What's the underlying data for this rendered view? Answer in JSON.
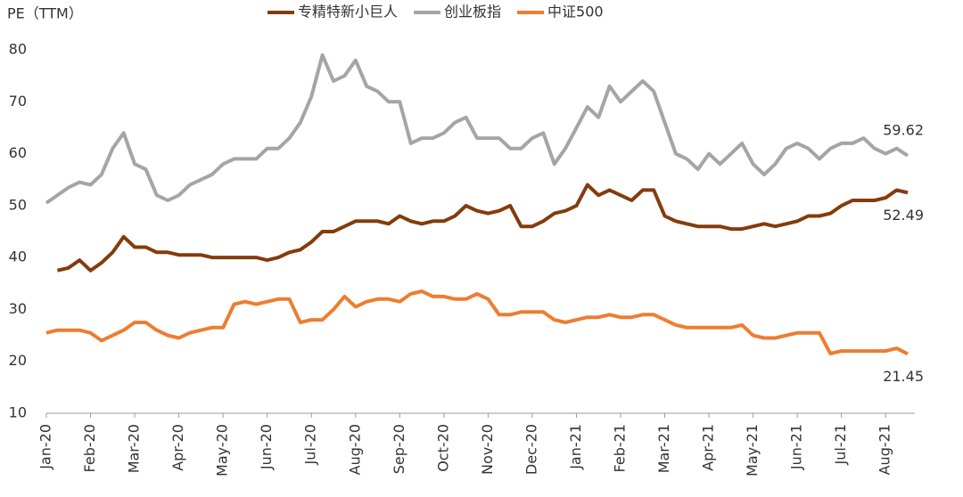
{
  "chart_data": {
    "type": "line",
    "y_label": "PE（TTM）",
    "categories": [
      "Jan-20",
      null,
      null,
      null,
      "Feb-20",
      null,
      null,
      null,
      "Mar-20",
      null,
      null,
      null,
      "Apr-20",
      null,
      null,
      null,
      "May-20",
      null,
      null,
      null,
      "Jun-20",
      null,
      null,
      null,
      "Jul-20",
      null,
      null,
      null,
      "Aug-20",
      null,
      null,
      null,
      "Sep-20",
      null,
      null,
      null,
      "Oct-20",
      null,
      null,
      null,
      "Nov-20",
      null,
      null,
      null,
      "Dec-20",
      null,
      null,
      null,
      "Jan-21",
      null,
      null,
      null,
      "Feb-21",
      null,
      null,
      null,
      "Mar-21",
      null,
      null,
      null,
      "Apr-21",
      null,
      null,
      null,
      "May-21",
      null,
      null,
      null,
      "Jun-21",
      null,
      null,
      null,
      "Jul-21",
      null,
      null,
      null,
      "Aug-21",
      null,
      null
    ],
    "series": [
      {
        "name": "专精特新小巨人",
        "color": "#843c0c",
        "values": [
          null,
          37.5,
          38,
          39.5,
          37.5,
          39,
          41,
          44,
          42,
          42,
          41,
          41,
          40.5,
          40.5,
          40.5,
          40,
          40,
          40,
          40,
          40,
          39.5,
          40,
          41,
          41.5,
          43,
          45,
          45,
          46,
          47,
          47,
          47,
          46.5,
          48,
          47,
          46.5,
          47,
          47,
          48,
          50,
          49,
          48.5,
          49,
          50,
          46,
          46,
          47,
          48.5,
          49,
          50,
          54,
          52,
          53,
          52,
          51,
          53,
          53,
          48,
          47,
          46.5,
          46,
          46,
          46,
          45.5,
          45.5,
          46,
          46.5,
          46,
          46.5,
          47,
          48,
          48,
          48.5,
          50,
          51,
          51,
          51,
          51.5,
          53,
          52.49
        ]
      },
      {
        "name": "创业板指",
        "color": "#a5a5a5",
        "values": [
          50.5,
          52,
          53.5,
          54.5,
          54,
          56,
          61,
          64,
          58,
          57,
          52,
          51,
          52,
          54,
          55,
          56,
          58,
          59,
          59,
          59,
          61,
          61,
          63,
          66,
          71,
          79,
          74,
          75,
          78,
          73,
          72,
          70,
          70,
          62,
          63,
          63,
          64,
          66,
          67,
          63,
          63,
          63,
          61,
          61,
          63,
          64,
          58,
          61,
          65,
          69,
          67,
          73,
          70,
          72,
          74,
          72,
          66,
          60,
          59,
          57,
          60,
          58,
          60,
          62,
          58,
          56,
          58,
          61,
          62,
          61,
          59,
          61,
          62,
          62,
          63,
          61,
          60,
          61,
          59.62
        ]
      },
      {
        "name": "中证500",
        "color": "#ed7d31",
        "values": [
          25.5,
          26,
          26,
          26,
          25.5,
          24,
          25,
          26,
          27.5,
          27.5,
          26,
          25,
          24.5,
          25.5,
          26,
          26.5,
          26.5,
          31,
          31.5,
          31,
          31.5,
          32,
          32,
          27.5,
          28,
          28,
          30,
          32.5,
          30.5,
          31.5,
          32,
          32,
          31.5,
          33,
          33.5,
          32.5,
          32.5,
          32,
          32,
          33,
          32,
          29,
          29,
          29.5,
          29.5,
          29.5,
          28,
          27.5,
          28,
          28.5,
          28.5,
          29,
          28.5,
          28.5,
          29,
          29,
          28,
          27,
          26.5,
          26.5,
          26.5,
          26.5,
          26.5,
          27,
          25,
          24.5,
          24.5,
          25,
          25.5,
          25.5,
          25.5,
          21.5,
          22,
          22,
          22,
          22,
          22,
          22.5,
          21.45
        ]
      }
    ],
    "ylim": [
      10,
      80
    ],
    "yticks": [
      10,
      20,
      30,
      40,
      50,
      60,
      70,
      80
    ],
    "grid": false,
    "legend": "top"
  }
}
